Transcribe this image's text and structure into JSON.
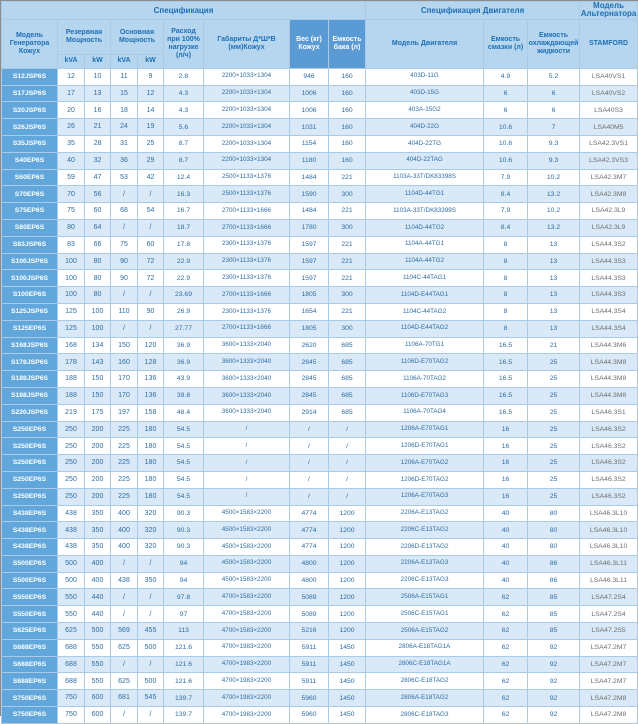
{
  "header": {
    "spec_title": "Спецификация",
    "engine_spec_title": "Спецификация Двигателя",
    "alternator_title": "Модель Альтернатора",
    "col_model": "Модель Генератора Кожух",
    "col_standby": "Резервная Мощность",
    "col_prime": "Основная Мощность",
    "unit_kva_standby": "kVA",
    "unit_kw_standby": "kW",
    "unit_kva_prime": "kVA",
    "unit_kw_prime": "kW",
    "col_fuel": "Расход при 100% нагрузке (л/ч)",
    "col_dims": "Габариты Д*Ш*В (мм)Кожух",
    "col_weight": "Вес (кг) Кожух",
    "col_tank": "Емкость бака (л)",
    "col_engine": "Модель Двигателя",
    "col_oil": "Емкость смазки (л)",
    "col_coolant": "Емкость охлаждающей жидкости",
    "col_alternator": "STAMFORD"
  },
  "colors": {
    "header_bg": "#b5d6ee",
    "header_text": "#1f6fb5",
    "model_cell_bg": "#62a7db",
    "stripe_bg": "#d9e9f7",
    "data_text": "#2e6da4"
  },
  "rows": [
    [
      "S12JSP6S",
      "12",
      "10",
      "11",
      "9",
      "2.8",
      "2200×1033×1304",
      "946",
      "160",
      "403D-11G",
      "4.9",
      "5.2",
      "LSA40VS1"
    ],
    [
      "S17JSP6S",
      "17",
      "13",
      "15",
      "12",
      "4.3",
      "2200×1033×1304",
      "1006",
      "160",
      "403D-15G",
      "6",
      "6",
      "LSA40VS2"
    ],
    [
      "S20JSP6S",
      "20",
      "16",
      "18",
      "14",
      "4.3",
      "2200×1033×1304",
      "1006",
      "160",
      "403A-15G2",
      "6",
      "6",
      "LSA40S3"
    ],
    [
      "S26JSP6S",
      "26",
      "21",
      "24",
      "19",
      "5.6",
      "2200×1033×1304",
      "1031",
      "160",
      "404D-22G",
      "10.6",
      "7",
      "LSA40M5"
    ],
    [
      "S35JSP6S",
      "35",
      "28",
      "31",
      "25",
      "8.7",
      "2200×1033×1304",
      "1154",
      "160",
      "404D-22TG",
      "10.6",
      "9.3",
      "LSA42.3VS1"
    ],
    [
      "S40EP6S",
      "40",
      "32",
      "36",
      "29",
      "8.7",
      "2200×1033×1304",
      "1180",
      "160",
      "404D-22TAG",
      "10.6",
      "9.3",
      "LSA42.3VS3"
    ],
    [
      "S60EP6S",
      "59",
      "47",
      "53",
      "42",
      "12.4",
      "2500×1133×1376",
      "1484",
      "221",
      "1103A-33T/DK83398S",
      "7.9",
      "10.2",
      "LSA42.3M7"
    ],
    [
      "S70EP6S",
      "70",
      "56",
      "/",
      "/",
      "16.3",
      "2500×1133×1376",
      "1590",
      "300",
      "1104D-44TG1",
      "8.4",
      "13.2",
      "LSA42.3M8"
    ],
    [
      "S75EP6S",
      "75",
      "60",
      "68",
      "54",
      "16.7",
      "2700×1133×1666",
      "1484",
      "221",
      "1103A-33T/DK83399S",
      "7.9",
      "10.2",
      "LSA42.3L9"
    ],
    [
      "S80EP6S",
      "80",
      "64",
      "/",
      "/",
      "18.7",
      "2700×1133×1666",
      "1780",
      "300",
      "1104D-44TG2",
      "8.4",
      "13.2",
      "LSA42.3L9"
    ],
    [
      "S83JSP6S",
      "83",
      "66",
      "75",
      "60",
      "17.8",
      "2300×1133×1376",
      "1597",
      "221",
      "1104A-44TG1",
      "8",
      "13",
      "LSA44.3S2"
    ],
    [
      "S100JSP6S",
      "100",
      "80",
      "90",
      "72",
      "22.9",
      "2300×1133×1376",
      "1597",
      "221",
      "1104A-44TG2",
      "8",
      "13",
      "LSA44.3S3"
    ],
    [
      "S100JSP6S",
      "100",
      "80",
      "90",
      "72",
      "22.9",
      "2300×1133×1376",
      "1597",
      "221",
      "1104C-44TAG1",
      "8",
      "13",
      "LSA44.3S3"
    ],
    [
      "S100EP6S",
      "100",
      "80",
      "/",
      "/",
      "23.69",
      "2700×1133×1666",
      "1805",
      "300",
      "1104D-E44TAG1",
      "8",
      "13",
      "LSA44.3S3"
    ],
    [
      "S125JSP6S",
      "125",
      "100",
      "110",
      "90",
      "26.9",
      "2300×1133×1376",
      "1654",
      "221",
      "1104C-44TAG2",
      "8",
      "13",
      "LSA44.3S4"
    ],
    [
      "S125EP6S",
      "125",
      "100",
      "/",
      "/",
      "27.77",
      "2700×1133×1666",
      "1805",
      "300",
      "1104D-E44TAG2",
      "8",
      "13",
      "LSA44.3S4"
    ],
    [
      "S168JSP6S",
      "168",
      "134",
      "150",
      "120",
      "36.9",
      "3600×1333×2040",
      "2620",
      "685",
      "1106A-70TG1",
      "16.5",
      "21",
      "LSA44.3M6"
    ],
    [
      "S178JSP6S",
      "178",
      "143",
      "160",
      "128",
      "36.9",
      "3600×1333×2040",
      "2845",
      "685",
      "1106D-E70TAG2",
      "16.5",
      "25",
      "LSA44.3M8"
    ],
    [
      "S188JSP6S",
      "188",
      "150",
      "170",
      "136",
      "43.9",
      "3600×1333×2040",
      "2845",
      "685",
      "1106A-70TAG2",
      "16.5",
      "25",
      "LSA44.3M8"
    ],
    [
      "S188JSP6S",
      "188",
      "150",
      "170",
      "136",
      "39.8",
      "3600×1333×2040",
      "2845",
      "685",
      "1106D-E70TAG3",
      "16.5",
      "25",
      "LSA44.3M8"
    ],
    [
      "S220JSP6S",
      "219",
      "175",
      "197",
      "158",
      "48.4",
      "3600×1333×2040",
      "2914",
      "685",
      "1106A-70TAG4",
      "16.5",
      "25",
      "LSA46.3S1"
    ],
    [
      "S250EP6S",
      "250",
      "200",
      "225",
      "180",
      "54.5",
      "/",
      "/",
      "/",
      "1206A-E70TAG1",
      "16",
      "25",
      "LSA46.3S2"
    ],
    [
      "S250EP6S",
      "250",
      "200",
      "225",
      "180",
      "54.5",
      "/",
      "/",
      "/",
      "1206D-E70TAG1",
      "16",
      "25",
      "LSA46.3S2"
    ],
    [
      "S250EP6S",
      "250",
      "200",
      "225",
      "180",
      "54.5",
      "/",
      "/",
      "/",
      "1206A-E70TAG2",
      "16",
      "25",
      "LSA46.3S2"
    ],
    [
      "S250EP6S",
      "250",
      "200",
      "225",
      "180",
      "54.5",
      "/",
      "/",
      "/",
      "1206D-E70TAG2",
      "16",
      "25",
      "LSA46.3S2"
    ],
    [
      "S250EP6S",
      "250",
      "200",
      "225",
      "180",
      "54.5",
      "/",
      "/",
      "/",
      "1206A-E70TAG3",
      "16",
      "25",
      "LSA46.3S2"
    ],
    [
      "S438EP6S",
      "438",
      "350",
      "400",
      "320",
      "90.3",
      "4500×1583×2200",
      "4774",
      "1200",
      "2206A-E13TAG2",
      "40",
      "80",
      "LSA46.3L10"
    ],
    [
      "S438EP6S",
      "438",
      "350",
      "400",
      "320",
      "90.3",
      "4500×1583×2200",
      "4774",
      "1200",
      "2206C-E13TAG2",
      "40",
      "80",
      "LSA46.3L10"
    ],
    [
      "S438EP6S",
      "438",
      "350",
      "400",
      "320",
      "90.3",
      "4500×1583×2200",
      "4774",
      "1200",
      "2206D-E13TAG2",
      "40",
      "80",
      "LSA46.3L10"
    ],
    [
      "S500EP6S",
      "500",
      "400",
      "/",
      "/",
      "94",
      "4500×1583×2200",
      "4800",
      "1200",
      "2206A-E13TAG3",
      "40",
      "86",
      "LSA46.3L11"
    ],
    [
      "S500EP6S",
      "500",
      "400",
      "438",
      "350",
      "94",
      "4500×1583×2200",
      "4800",
      "1200",
      "2206C-E13TAG3",
      "40",
      "86",
      "LSA46.3L11"
    ],
    [
      "S550EP6S",
      "550",
      "440",
      "/",
      "/",
      "97.8",
      "4700×1583×2200",
      "5089",
      "1200",
      "2506A-E15TAG1",
      "62",
      "85",
      "LSA47.2S4"
    ],
    [
      "S550EP6S",
      "550",
      "440",
      "/",
      "/",
      "97",
      "4700×1583×2200",
      "5089",
      "1200",
      "2506C-E15TAG1",
      "62",
      "85",
      "LSA47.2S4"
    ],
    [
      "S625EP6S",
      "625",
      "500",
      "569",
      "455",
      "113",
      "4700×1583×2200",
      "5216",
      "1200",
      "2506A-E15TAG2",
      "62",
      "85",
      "LSA47.2S5"
    ],
    [
      "S688EP6S",
      "688",
      "550",
      "625",
      "500",
      "121.6",
      "4700×1983×2200",
      "5911",
      "1450",
      "2806A-E18TAG1A",
      "62",
      "92",
      "LSA47.2M7"
    ],
    [
      "S688EP6S",
      "688",
      "550",
      "/",
      "/",
      "121.6",
      "4700×1983×2200",
      "5911",
      "1450",
      "2806C-E18TAG1A",
      "62",
      "92",
      "LSA47.2M7"
    ],
    [
      "S688EP6S",
      "688",
      "550",
      "625",
      "500",
      "121.6",
      "4700×1983×2200",
      "5911",
      "1450",
      "2806C-E18TAG2",
      "62",
      "92",
      "LSA47.2M7"
    ],
    [
      "S750EP6S",
      "750",
      "600",
      "681",
      "545",
      "139.7",
      "4700×1983×2200",
      "5960",
      "1450",
      "2806A-E18TAG2",
      "62",
      "92",
      "LSA47.2M8"
    ],
    [
      "S750EP6S",
      "750",
      "600",
      "/",
      "/",
      "139.7",
      "4700×1983×2200",
      "5960",
      "1450",
      "2806C-E18TAG3",
      "62",
      "92",
      "LSA47.2M8"
    ]
  ]
}
